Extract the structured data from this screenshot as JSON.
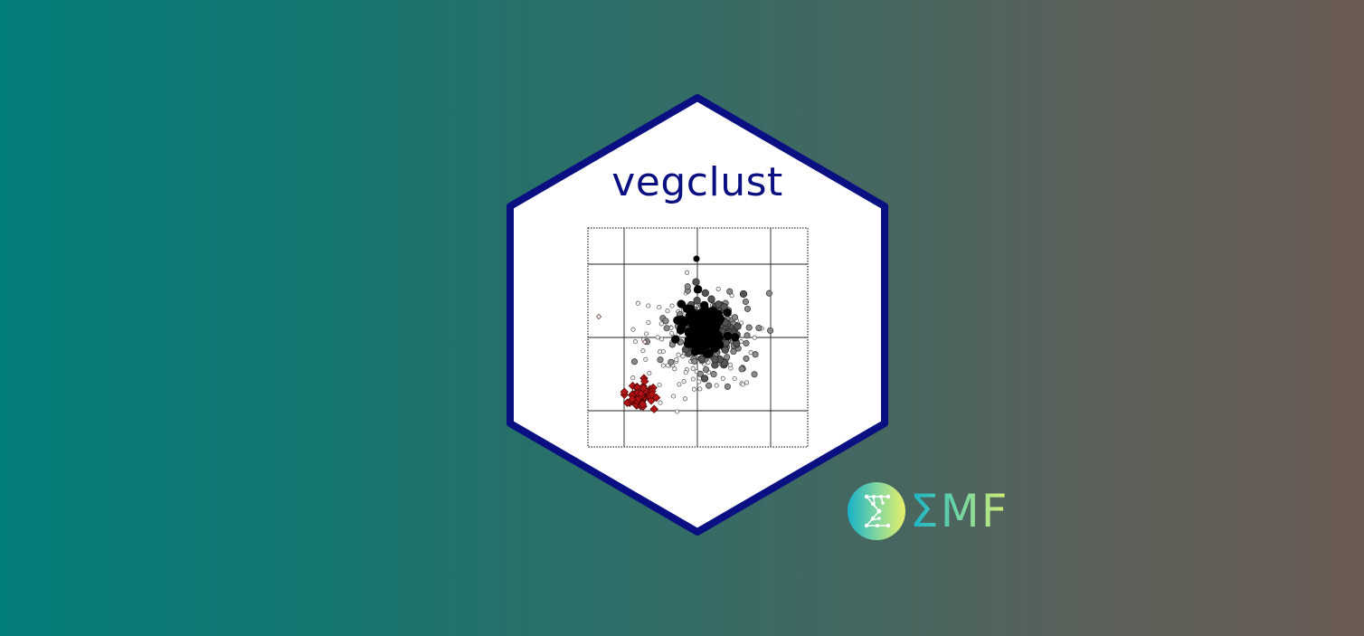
{
  "logo": {
    "title": "vegclust",
    "border_color": "#0a0f82",
    "fill_color": "#ffffff",
    "plot_colors": {
      "black": "#000000",
      "gray_dark": "#555555",
      "gray_mid": "#8a8a8a",
      "gray_light": "#d8d8d8",
      "red": "#b31212"
    }
  },
  "brand": {
    "text": "ΣMF",
    "icon": "sigma-network-icon",
    "gradient": [
      "#17b2c9",
      "#68d3a6",
      "#d9ef73"
    ]
  }
}
